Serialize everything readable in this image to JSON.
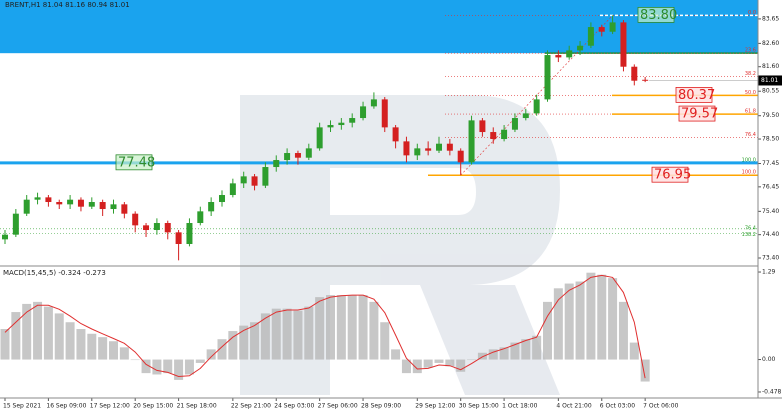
{
  "symbol": "BRENT,H1",
  "chart_data": [
    {
      "type": "candlestick",
      "categories": [
        "15 Sep 2021",
        null,
        null,
        null,
        "16 Sep 09:00",
        null,
        null,
        null,
        "17 Sep 12:00",
        null,
        null,
        null,
        "20 Sep 15:00",
        null,
        null,
        null,
        "21 Sep 18:00",
        null,
        null,
        null,
        null,
        "22 Sep 21:00",
        null,
        null,
        null,
        "24 Sep 03:00",
        null,
        null,
        null,
        "27 Sep 06:00",
        null,
        null,
        null,
        "28 Sep 09:00",
        null,
        null,
        null,
        null,
        "29 Sep 12:00",
        null,
        null,
        null,
        "30 Sep 15:00",
        null,
        null,
        null,
        "1 Oct 18:00",
        null,
        null,
        null,
        null,
        "4 Oct 21:00",
        null,
        null,
        null,
        "6 Oct 03:00",
        null,
        null,
        null,
        "7 Oct 06:00"
      ],
      "open": [
        74.2,
        74.4,
        75.3,
        75.9,
        76.0,
        75.8,
        75.7,
        75.9,
        75.6,
        75.8,
        75.5,
        75.7,
        75.3,
        74.8,
        74.6,
        74.9,
        74.5,
        74.0,
        74.9,
        75.4,
        75.8,
        76.1,
        76.6,
        76.9,
        76.5,
        77.3,
        77.6,
        77.9,
        77.7,
        78.1,
        79.0,
        79.1,
        79.2,
        79.4,
        79.9,
        80.2,
        79.0,
        78.4,
        77.8,
        78.1,
        78.0,
        78.3,
        78.0,
        77.5,
        79.3,
        78.8,
        78.5,
        78.9,
        79.4,
        79.6,
        80.2,
        82.1,
        82.0,
        82.3,
        82.5,
        83.3,
        83.1,
        83.5,
        81.6,
        81.04
      ],
      "high": [
        74.6,
        75.5,
        76.1,
        76.2,
        76.1,
        75.9,
        76.1,
        76.0,
        76.0,
        75.9,
        75.9,
        75.8,
        75.4,
        74.9,
        75.1,
        75.0,
        74.6,
        75.1,
        75.6,
        76.0,
        76.3,
        76.8,
        77.1,
        77.0,
        77.5,
        77.8,
        78.1,
        78.0,
        78.3,
        79.2,
        79.3,
        79.4,
        79.6,
        80.1,
        80.5,
        80.3,
        79.1,
        78.6,
        78.3,
        78.4,
        78.6,
        78.5,
        78.1,
        79.5,
        79.4,
        79.0,
        79.1,
        79.6,
        79.8,
        80.4,
        82.3,
        82.3,
        82.5,
        82.7,
        83.5,
        83.4,
        83.8,
        83.6,
        81.7,
        81.16
      ],
      "low": [
        74.0,
        74.3,
        75.2,
        75.7,
        75.6,
        75.5,
        75.5,
        75.4,
        75.5,
        75.2,
        75.3,
        75.1,
        74.5,
        74.3,
        74.4,
        74.2,
        73.3,
        73.9,
        74.8,
        75.2,
        75.6,
        76.0,
        76.4,
        76.3,
        76.4,
        77.1,
        77.4,
        77.4,
        77.6,
        78.0,
        78.8,
        78.9,
        79.0,
        79.3,
        79.8,
        78.8,
        78.1,
        77.5,
        77.6,
        77.8,
        77.9,
        77.8,
        76.95,
        77.4,
        78.6,
        78.3,
        78.4,
        78.8,
        79.3,
        79.5,
        80.1,
        81.8,
        81.9,
        82.1,
        82.4,
        82.9,
        83.0,
        81.4,
        80.8,
        80.94
      ],
      "close": [
        74.4,
        75.3,
        75.9,
        76.0,
        75.8,
        75.7,
        75.9,
        75.6,
        75.8,
        75.5,
        75.7,
        75.3,
        74.8,
        74.6,
        74.9,
        74.5,
        74.0,
        74.9,
        75.4,
        75.8,
        76.1,
        76.6,
        76.9,
        76.5,
        77.3,
        77.6,
        77.9,
        77.7,
        78.1,
        79.0,
        79.1,
        79.2,
        79.4,
        79.9,
        80.2,
        79.0,
        78.4,
        77.8,
        78.1,
        78.0,
        78.3,
        78.0,
        77.5,
        79.3,
        78.8,
        78.5,
        78.9,
        79.4,
        79.6,
        80.2,
        82.1,
        82.0,
        82.3,
        82.5,
        83.3,
        83.1,
        83.5,
        81.6,
        81.0,
        81.01
      ],
      "up_color": "#2e9e2e",
      "down_color": "#d42020",
      "ylim": [
        73.1,
        84.46
      ],
      "yticks": [
        83.65,
        {
          "value": 82.6,
          "label": "82.60"
        },
        {
          "value": 81.6,
          "label": "81.60"
        },
        80.55,
        {
          "value": 79.5,
          "label": "79.50"
        },
        {
          "value": 78.5,
          "label": "78.50"
        },
        77.45,
        76.45,
        {
          "value": 75.4,
          "label": "75.40"
        },
        {
          "value": 74.4,
          "label": "74.40"
        },
        {
          "value": 73.4,
          "label": "73.40"
        }
      ],
      "zone_color": "#1aa3ee",
      "levels": [
        {
          "value": 83.8,
          "label": "83.80",
          "line_color": "#ffffff",
          "label_color": "#2e8b2e"
        },
        {
          "value": 80.37,
          "line_color": "#ffa500",
          "label_color": "#e02020"
        },
        {
          "value": 79.57,
          "line_color": "#ffa500",
          "label_color": "#e02020"
        },
        {
          "value": 76.95,
          "line_color": "#ffa500",
          "label_color": "#e02020"
        },
        {
          "value": 77.48,
          "line_color": "#1aa3ee",
          "label_color": "#2e8b2e"
        }
      ],
      "fibo_color": "#e03030",
      "fibo": [
        {
          "ratio": "0.0",
          "price": 83.8
        },
        {
          "ratio": "23.6",
          "price": 82.18
        },
        {
          "ratio": "38.2",
          "price": 81.18
        },
        {
          "ratio": "50.0",
          "price": 80.375
        },
        {
          "ratio": "61.8",
          "price": 79.57
        },
        {
          "ratio": "76.4",
          "price": 78.57
        },
        {
          "ratio": "100.0",
          "price": 76.95
        }
      ],
      "fibo2_color": "#2ea02e",
      "fibo2": [
        {
          "ratio": "100.0",
          "price": 77.48
        },
        {
          "ratio": "76.4",
          "price": 74.65
        },
        {
          "ratio": "138.2",
          "price": 74.45
        }
      ]
    },
    {
      "type": "macd",
      "name": "MACD(15,45,5)",
      "histogram": [
        0.45,
        0.7,
        0.82,
        0.85,
        0.78,
        0.68,
        0.55,
        0.45,
        0.38,
        0.33,
        0.27,
        0.18,
        0.0,
        -0.2,
        -0.22,
        -0.2,
        -0.3,
        -0.22,
        -0.05,
        0.15,
        0.3,
        0.42,
        0.5,
        0.55,
        0.68,
        0.75,
        0.75,
        0.72,
        0.78,
        0.92,
        0.95,
        0.95,
        0.95,
        0.95,
        0.85,
        0.55,
        0.15,
        -0.2,
        -0.2,
        -0.12,
        -0.05,
        -0.1,
        -0.18,
        0.0,
        0.1,
        0.15,
        0.18,
        0.25,
        0.3,
        0.35,
        0.85,
        1.05,
        1.12,
        1.15,
        1.28,
        1.25,
        1.2,
        0.85,
        0.25,
        -0.324
      ],
      "signal": [
        0.4,
        0.55,
        0.7,
        0.8,
        0.8,
        0.74,
        0.64,
        0.53,
        0.45,
        0.38,
        0.31,
        0.24,
        0.11,
        -0.07,
        -0.16,
        -0.19,
        -0.25,
        -0.24,
        -0.13,
        0.04,
        0.19,
        0.33,
        0.43,
        0.5,
        0.61,
        0.7,
        0.73,
        0.73,
        0.76,
        0.86,
        0.92,
        0.94,
        0.95,
        0.95,
        0.89,
        0.69,
        0.36,
        0.02,
        -0.14,
        -0.13,
        -0.08,
        -0.09,
        -0.15,
        -0.06,
        0.04,
        0.11,
        0.16,
        0.22,
        0.28,
        0.33,
        0.64,
        0.88,
        1.02,
        1.1,
        1.21,
        1.24,
        1.21,
        0.99,
        0.55,
        -0.273
      ],
      "hist_color": "#b4b4b4",
      "signal_color": "#e03030",
      "ylim": [
        -0.552,
        1.364
      ],
      "yticks": [
        1.29,
        {
          "value": 0,
          "label": "0.00"
        },
        -0.478
      ]
    }
  ]
}
